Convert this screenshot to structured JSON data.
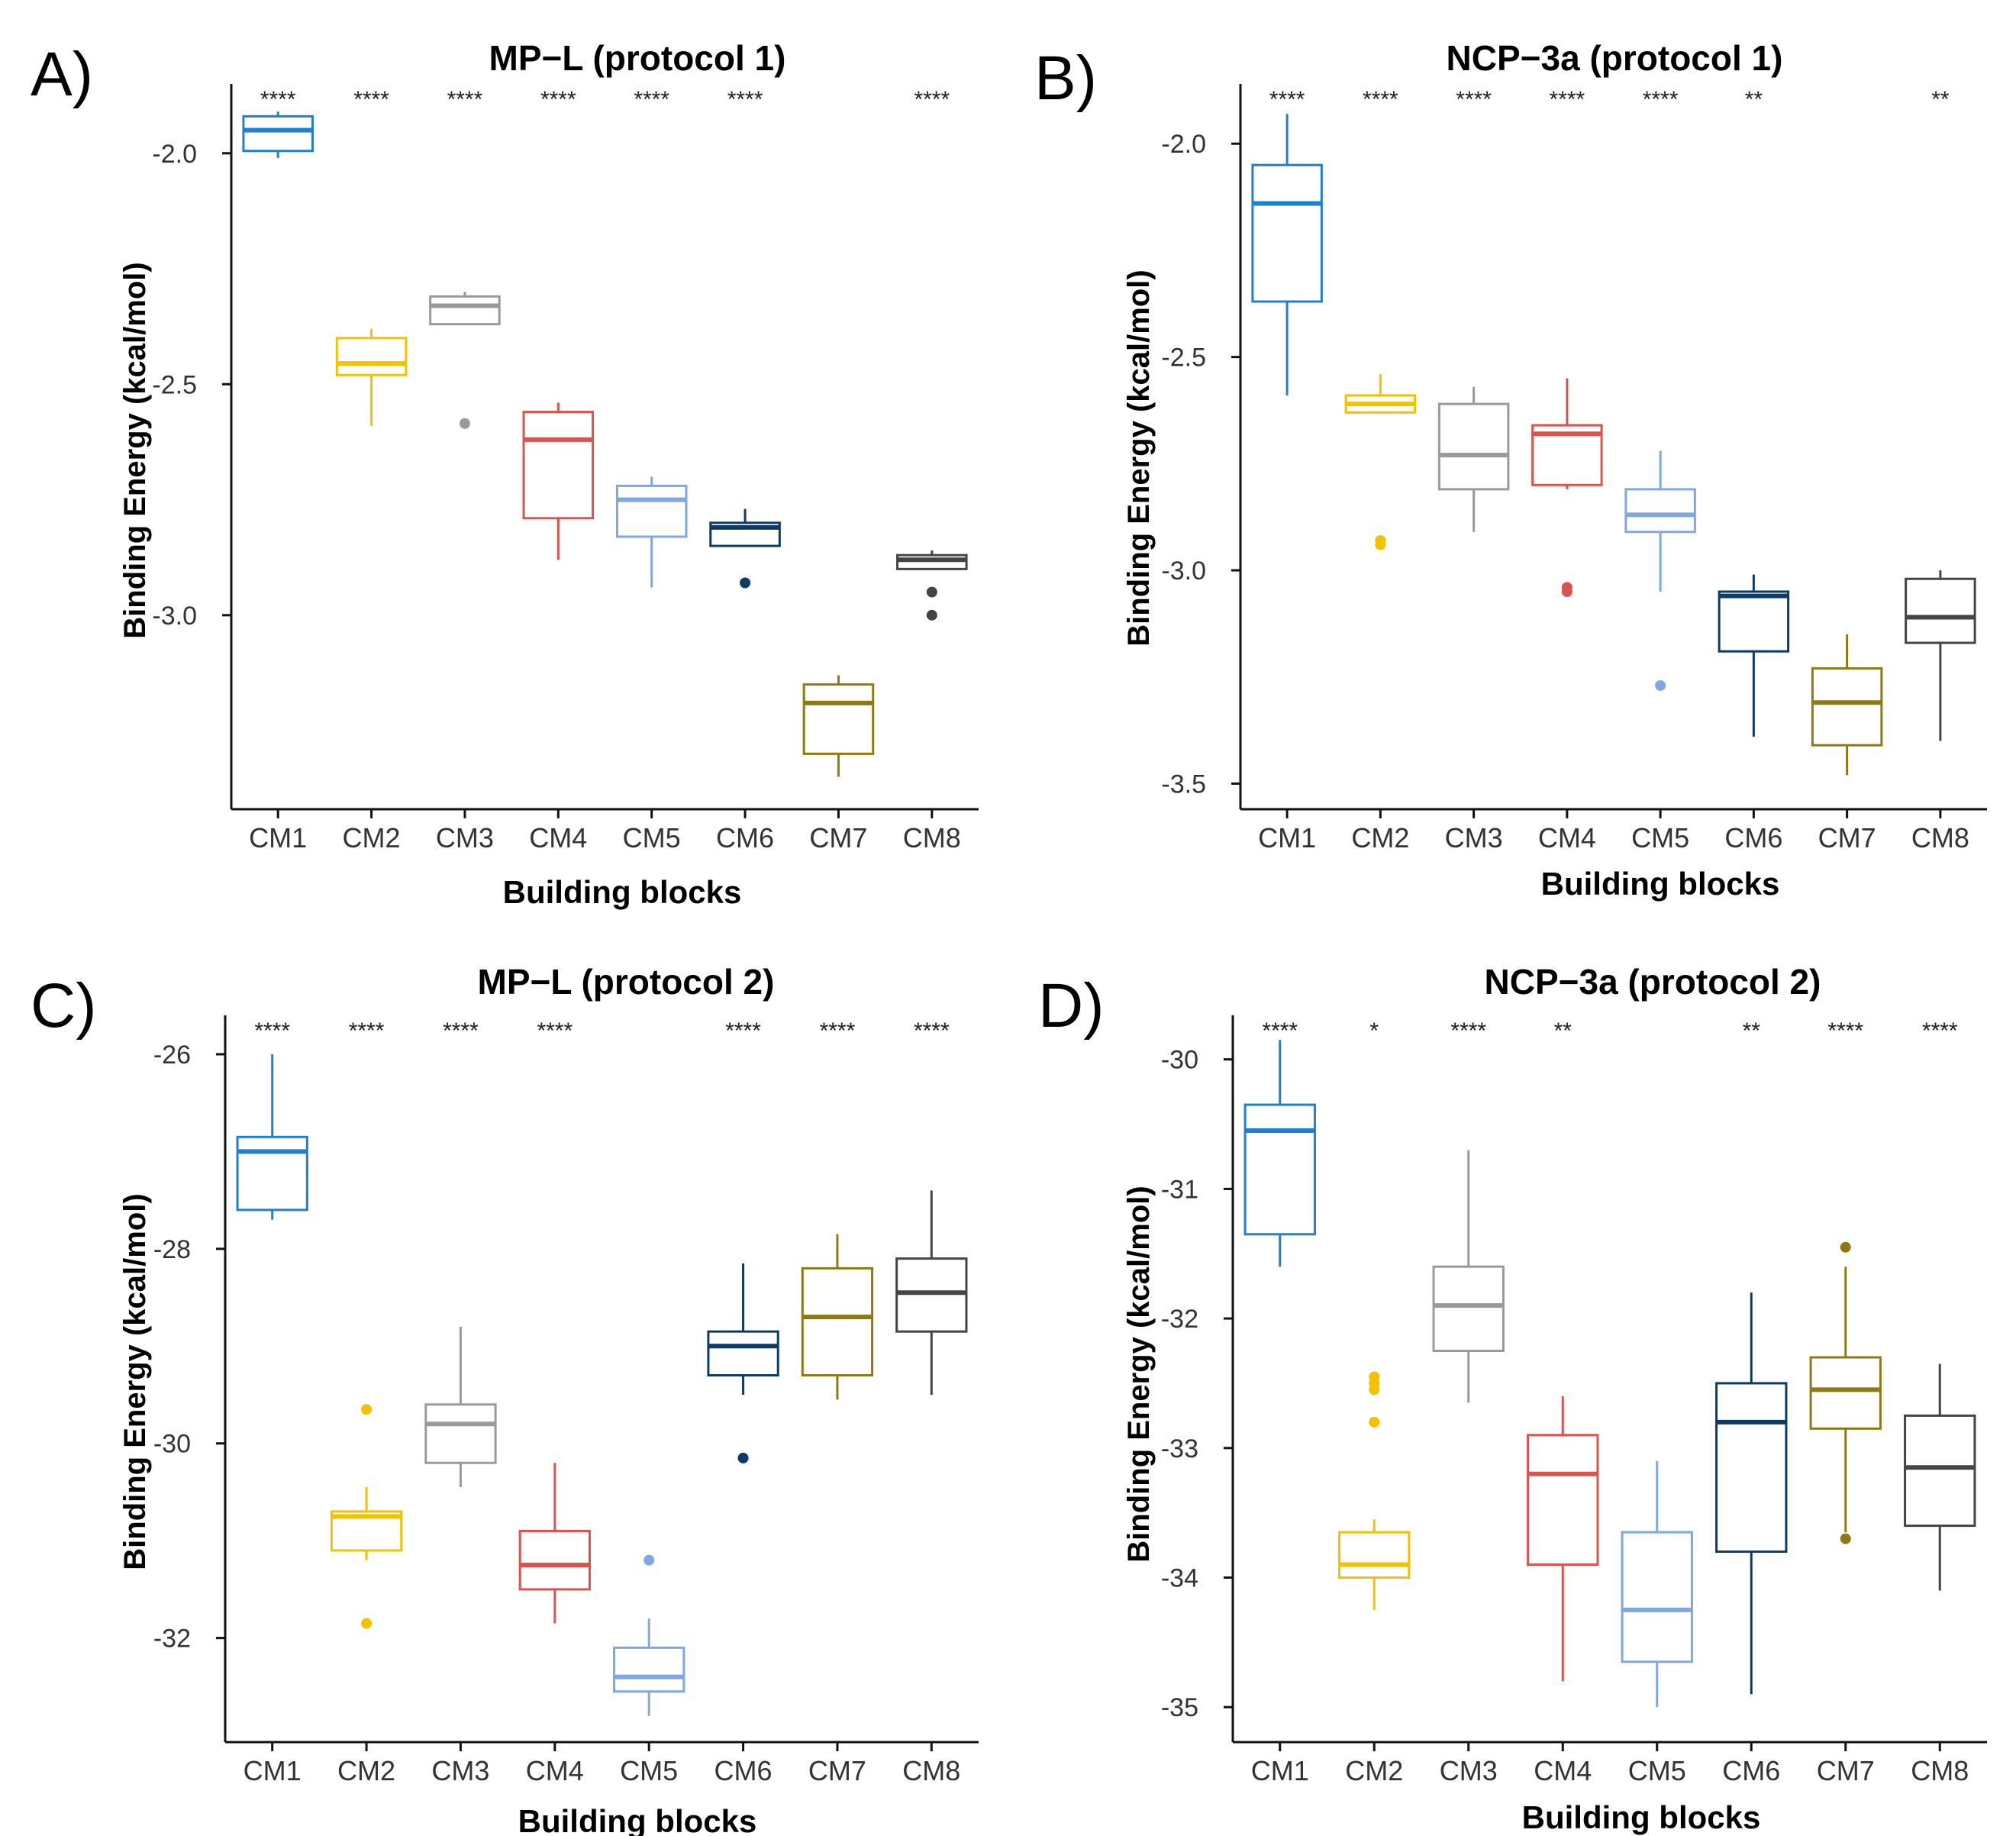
{
  "chart_data": [
    {
      "panel_label": "A)",
      "type": "boxplot",
      "title": "MP−L (protocol 1)",
      "xlabel": "Building blocks",
      "ylabel": "Binding Energy (kcal/mol)",
      "categories": [
        "CM1",
        "CM2",
        "CM3",
        "CM4",
        "CM5",
        "CM6",
        "CM7",
        "CM8"
      ],
      "ylim": [
        -3.42,
        -1.85
      ],
      "yticks": [
        -3.0,
        -2.5,
        -2.0
      ],
      "ytick_labels": [
        "-3.0",
        "-2.5",
        "-2.0"
      ],
      "significance": [
        "****",
        "****",
        "****",
        "****",
        "****",
        "****",
        "",
        "****"
      ],
      "boxes": [
        {
          "category": "CM1",
          "whisker_low": -2.01,
          "q1": -1.995,
          "median": -1.95,
          "q3": -1.92,
          "whisker_high": -1.91,
          "outliers": []
        },
        {
          "category": "CM2",
          "whisker_low": -2.59,
          "q1": -2.48,
          "median": -2.455,
          "q3": -2.4,
          "whisker_high": -2.38,
          "outliers": []
        },
        {
          "category": "CM3",
          "whisker_low": -2.37,
          "q1": -2.37,
          "median": -2.33,
          "q3": -2.31,
          "whisker_high": -2.3,
          "outliers": [
            -2.585
          ]
        },
        {
          "category": "CM4",
          "whisker_low": -2.88,
          "q1": -2.79,
          "median": -2.62,
          "q3": -2.56,
          "whisker_high": -2.54,
          "outliers": []
        },
        {
          "category": "CM5",
          "whisker_low": -2.94,
          "q1": -2.83,
          "median": -2.75,
          "q3": -2.72,
          "whisker_high": -2.7,
          "outliers": []
        },
        {
          "category": "CM6",
          "whisker_low": -2.85,
          "q1": -2.85,
          "median": -2.81,
          "q3": -2.8,
          "whisker_high": -2.77,
          "outliers": [
            -2.93
          ]
        },
        {
          "category": "CM7",
          "whisker_low": -3.35,
          "q1": -3.3,
          "median": -3.19,
          "q3": -3.15,
          "whisker_high": -3.13,
          "outliers": []
        },
        {
          "category": "CM8",
          "whisker_low": -2.9,
          "q1": -2.9,
          "median": -2.88,
          "q3": -2.87,
          "whisker_high": -2.86,
          "outliers": [
            -2.95,
            -3.0
          ]
        }
      ]
    },
    {
      "panel_label": "B)",
      "type": "boxplot",
      "title": "NCP−3a (protocol 1)",
      "xlabel": "Building blocks",
      "ylabel": "Binding Energy (kcal/mol)",
      "categories": [
        "CM1",
        "CM2",
        "CM3",
        "CM4",
        "CM5",
        "CM6",
        "CM7",
        "CM8"
      ],
      "ylim": [
        -3.56,
        -1.86
      ],
      "yticks": [
        -3.5,
        -3.0,
        -2.5,
        -2.0
      ],
      "ytick_labels": [
        "-3.5",
        "-3.0",
        "-2.5",
        "-2.0"
      ],
      "significance": [
        "****",
        "****",
        "****",
        "****",
        "****",
        "**",
        "",
        "**"
      ],
      "boxes": [
        {
          "category": "CM1",
          "whisker_low": -2.59,
          "q1": -2.37,
          "median": -2.14,
          "q3": -2.05,
          "whisker_high": -1.93,
          "outliers": []
        },
        {
          "category": "CM2",
          "whisker_low": -2.63,
          "q1": -2.63,
          "median": -2.61,
          "q3": -2.59,
          "whisker_high": -2.54,
          "outliers": [
            -2.93,
            -2.94
          ]
        },
        {
          "category": "CM3",
          "whisker_low": -2.91,
          "q1": -2.81,
          "median": -2.73,
          "q3": -2.61,
          "whisker_high": -2.57,
          "outliers": []
        },
        {
          "category": "CM4",
          "whisker_low": -2.81,
          "q1": -2.8,
          "median": -2.68,
          "q3": -2.66,
          "whisker_high": -2.55,
          "outliers": [
            -3.04,
            -3.05
          ]
        },
        {
          "category": "CM5",
          "whisker_low": -3.05,
          "q1": -2.91,
          "median": -2.87,
          "q3": -2.81,
          "whisker_high": -2.72,
          "outliers": [
            -3.27
          ]
        },
        {
          "category": "CM6",
          "whisker_low": -3.39,
          "q1": -3.19,
          "median": -3.06,
          "q3": -3.05,
          "whisker_high": -3.01,
          "outliers": []
        },
        {
          "category": "CM7",
          "whisker_low": -3.48,
          "q1": -3.41,
          "median": -3.31,
          "q3": -3.23,
          "whisker_high": -3.15,
          "outliers": []
        },
        {
          "category": "CM8",
          "whisker_low": -3.4,
          "q1": -3.17,
          "median": -3.11,
          "q3": -3.02,
          "whisker_high": -3.0,
          "outliers": []
        }
      ]
    },
    {
      "panel_label": "C)",
      "type": "boxplot",
      "title": "MP−L (protocol 2)",
      "xlabel": "Building blocks",
      "ylabel": "Binding Energy (kcal/mol)",
      "categories": [
        "CM1",
        "CM2",
        "CM3",
        "CM4",
        "CM5",
        "CM6",
        "CM7",
        "CM8"
      ],
      "ylim": [
        -33.07,
        -25.6
      ],
      "yticks": [
        -32,
        -30,
        -28,
        -26
      ],
      "ytick_labels": [
        "-32",
        "-30",
        "-28",
        "-26"
      ],
      "significance": [
        "****",
        "****",
        "****",
        "****",
        "",
        "****",
        "****",
        "****"
      ],
      "boxes": [
        {
          "category": "CM1",
          "whisker_low": -27.7,
          "q1": -27.6,
          "median": -27.0,
          "q3": -26.85,
          "whisker_high": -26.0,
          "outliers": []
        },
        {
          "category": "CM2",
          "whisker_low": -31.2,
          "q1": -31.1,
          "median": -30.75,
          "q3": -30.7,
          "whisker_high": -30.45,
          "outliers": [
            -29.65,
            -31.85
          ]
        },
        {
          "category": "CM3",
          "whisker_low": -30.45,
          "q1": -30.2,
          "median": -29.8,
          "q3": -29.6,
          "whisker_high": -28.8,
          "outliers": []
        },
        {
          "category": "CM4",
          "whisker_low": -31.85,
          "q1": -31.5,
          "median": -31.25,
          "q3": -30.9,
          "whisker_high": -30.2,
          "outliers": []
        },
        {
          "category": "CM5",
          "whisker_low": -32.8,
          "q1": -32.55,
          "median": -32.4,
          "q3": -32.1,
          "whisker_high": -31.8,
          "outliers": [
            -31.2
          ]
        },
        {
          "category": "CM6",
          "whisker_low": -29.5,
          "q1": -29.3,
          "median": -29.0,
          "q3": -28.85,
          "whisker_high": -28.15,
          "outliers": [
            -30.15
          ]
        },
        {
          "category": "CM7",
          "whisker_low": -29.55,
          "q1": -29.3,
          "median": -28.7,
          "q3": -28.2,
          "whisker_high": -27.85,
          "outliers": []
        },
        {
          "category": "CM8",
          "whisker_low": -29.5,
          "q1": -28.85,
          "median": -28.45,
          "q3": -28.1,
          "whisker_high": -27.4,
          "outliers": []
        }
      ]
    },
    {
      "panel_label": "D)",
      "type": "boxplot",
      "title": "NCP−3a (protocol 2)",
      "xlabel": "Building blocks",
      "ylabel": "Binding Energy (kcal/mol)",
      "categories": [
        "CM1",
        "CM2",
        "CM3",
        "CM4",
        "CM5",
        "CM6",
        "CM7",
        "CM8"
      ],
      "ylim": [
        -35.27,
        -29.66
      ],
      "yticks": [
        -35,
        -34,
        -33,
        -32,
        -31,
        -30
      ],
      "ytick_labels": [
        "-35",
        "-34",
        "-33",
        "-32",
        "-31",
        "-30"
      ],
      "significance": [
        "****",
        "*",
        "****",
        "**",
        "",
        "**",
        "****",
        "****"
      ],
      "boxes": [
        {
          "category": "CM1",
          "whisker_low": -31.6,
          "q1": -31.35,
          "median": -30.55,
          "q3": -30.35,
          "whisker_high": -29.85,
          "outliers": []
        },
        {
          "category": "CM2",
          "whisker_low": -34.25,
          "q1": -34.0,
          "median": -33.9,
          "q3": -33.65,
          "whisker_high": -33.55,
          "outliers": [
            -32.45,
            -32.5,
            -32.55,
            -32.8
          ]
        },
        {
          "category": "CM3",
          "whisker_low": -32.65,
          "q1": -32.25,
          "median": -31.9,
          "q3": -31.6,
          "whisker_high": -30.7,
          "outliers": []
        },
        {
          "category": "CM4",
          "whisker_low": -34.8,
          "q1": -33.9,
          "median": -33.2,
          "q3": -32.9,
          "whisker_high": -32.6,
          "outliers": []
        },
        {
          "category": "CM5",
          "whisker_low": -35.0,
          "q1": -34.65,
          "median": -34.25,
          "q3": -33.65,
          "whisker_high": -33.1,
          "outliers": []
        },
        {
          "category": "CM6",
          "whisker_low": -34.9,
          "q1": -33.8,
          "median": -32.8,
          "q3": -32.5,
          "whisker_high": -31.8,
          "outliers": []
        },
        {
          "category": "CM7",
          "whisker_low": -33.65,
          "q1": -32.85,
          "median": -32.55,
          "q3": -32.3,
          "whisker_high": -31.6,
          "outliers": [
            -31.45,
            -33.7
          ]
        },
        {
          "category": "CM8",
          "whisker_low": -34.1,
          "q1": -33.6,
          "median": -33.15,
          "q3": -32.75,
          "whisker_high": -32.35,
          "outliers": []
        }
      ]
    }
  ],
  "colors": {
    "CM1": "#1f7fd4",
    "CM2": "#f2c200",
    "CM3": "#9a9a9a",
    "CM4": "#d9534f",
    "CM5": "#7fa8e0",
    "CM6": "#0d3b66",
    "CM7": "#8f7a12",
    "CM8": "#444444",
    "axis": "#111111",
    "text": "#000000"
  }
}
